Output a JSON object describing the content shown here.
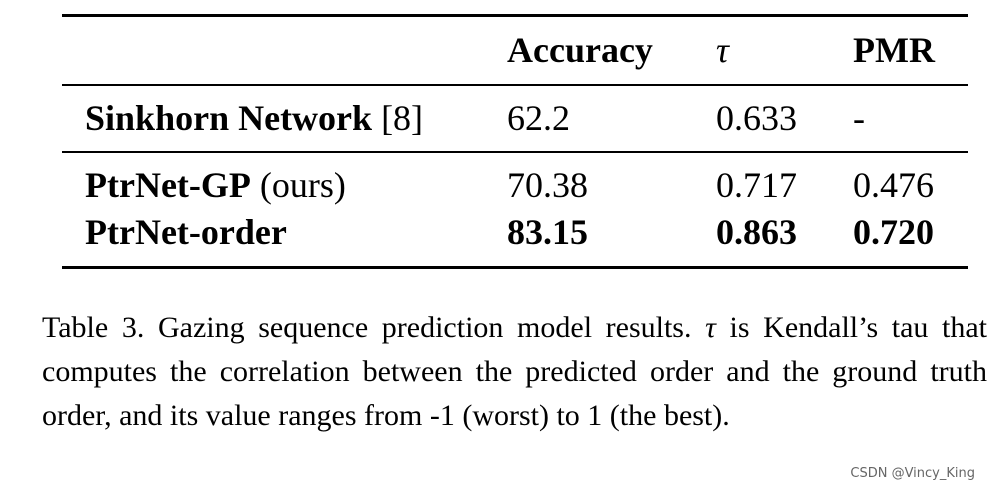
{
  "table": {
    "header": [
      "Accuracy",
      "τ",
      "PMR"
    ],
    "rows": [
      {
        "name": "Sinkhorn Network",
        "note": "[8]",
        "cells": [
          "62.2",
          "0.633",
          "-"
        ]
      },
      {
        "name": "PtrNet-GP",
        "note": "(ours)",
        "cells": [
          "70.38",
          "0.717",
          "0.476"
        ]
      },
      {
        "name": "PtrNet-order",
        "cells": [
          "83.15",
          "0.863",
          "0.720"
        ]
      }
    ]
  },
  "caption": {
    "label": "Table 3.",
    "text_1": "Gazing sequence prediction model results.",
    "symbol": "τ",
    "text_2": "is Kendall’s tau that computes the correlation between the predicted order and the ground truth order, and its value ranges from -1 (worst) to 1 (the best)."
  },
  "watermark": "CSDN @Vincy_King"
}
